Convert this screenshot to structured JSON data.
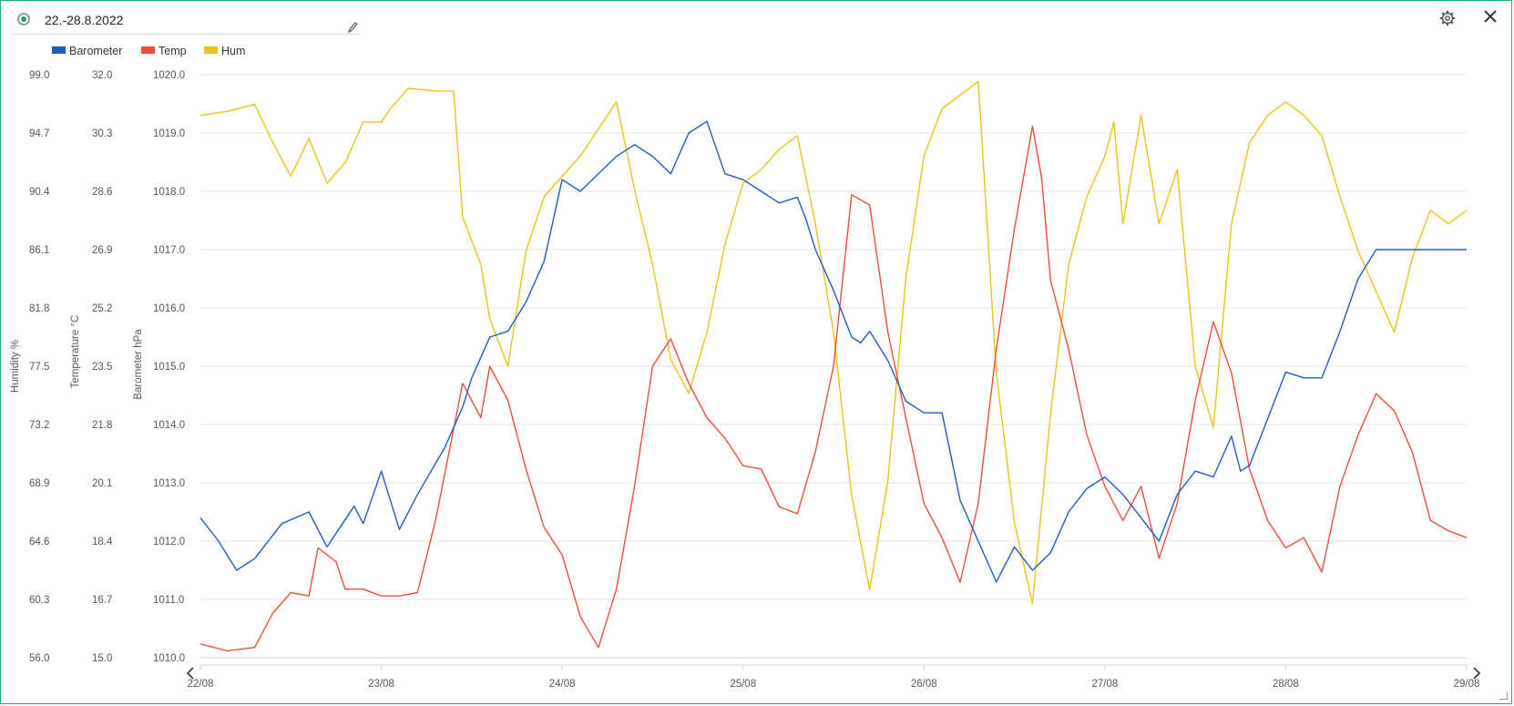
{
  "header": {
    "date_range": "22.-28.8.2022",
    "radio_icon": "radio-selected-icon",
    "edit_icon": "pencil-icon",
    "settings_icon": "gear-icon",
    "close_icon": "close-icon"
  },
  "legend": [
    {
      "label": "Barometer",
      "color": "#1f5cbf"
    },
    {
      "label": "Temp",
      "color": "#e8503a"
    },
    {
      "label": "Hum",
      "color": "#ecc319"
    }
  ],
  "navigation": {
    "prev_icon": "chevron-left-icon",
    "next_icon": "chevron-right-icon"
  },
  "chart_data": {
    "type": "line",
    "x_tick_labels": [
      "22/08",
      "23/08",
      "24/08",
      "25/08",
      "26/08",
      "27/08",
      "28/08",
      "29/08"
    ],
    "xlim": [
      0,
      7
    ],
    "x_unit": "days since 22/08",
    "grid": true,
    "legend_position": "top-left",
    "axes": [
      {
        "id": "hum",
        "label": "Humidity %",
        "ylim": [
          56.0,
          99.0
        ],
        "ticks": [
          "56.0",
          "60.3",
          "64.6",
          "68.9",
          "73.2",
          "77.5",
          "81.8",
          "86.1",
          "90.4",
          "94.7",
          "99.0"
        ]
      },
      {
        "id": "temp",
        "label": "Temperature °C",
        "ylim": [
          15.0,
          32.0
        ],
        "ticks": [
          "15.0",
          "16.7",
          "18.4",
          "20.1",
          "21.8",
          "23.5",
          "25.2",
          "26.9",
          "28.6",
          "30.3",
          "32.0"
        ]
      },
      {
        "id": "baro",
        "label": "Barometer hPa",
        "ylim": [
          1010.0,
          1020.0
        ],
        "ticks": [
          "1010.0",
          "1011.0",
          "1012.0",
          "1013.0",
          "1014.0",
          "1015.0",
          "1016.0",
          "1017.0",
          "1018.0",
          "1019.0",
          "1020.0"
        ]
      }
    ],
    "series": [
      {
        "name": "Barometer",
        "axis": "baro",
        "color": "#1f5cbf",
        "x": [
          0,
          0.1,
          0.2,
          0.3,
          0.45,
          0.6,
          0.7,
          0.85,
          0.9,
          1.0,
          1.1,
          1.2,
          1.35,
          1.45,
          1.5,
          1.6,
          1.7,
          1.8,
          1.9,
          2.0,
          2.1,
          2.2,
          2.3,
          2.4,
          2.5,
          2.6,
          2.7,
          2.8,
          2.9,
          3.0,
          3.1,
          3.2,
          3.3,
          3.35,
          3.4,
          3.5,
          3.6,
          3.65,
          3.7,
          3.8,
          3.9,
          4.0,
          4.1,
          4.2,
          4.3,
          4.4,
          4.5,
          4.6,
          4.7,
          4.8,
          4.9,
          5.0,
          5.1,
          5.2,
          5.3,
          5.4,
          5.5,
          5.6,
          5.7,
          5.75,
          5.8,
          5.9,
          6.0,
          6.1,
          6.2,
          6.3,
          6.4,
          6.5,
          6.6,
          6.7,
          6.8,
          6.9,
          7.0
        ],
        "y": [
          1012.4,
          1012.0,
          1011.5,
          1011.7,
          1012.3,
          1012.5,
          1011.9,
          1012.6,
          1012.3,
          1013.2,
          1012.2,
          1012.8,
          1013.6,
          1014.3,
          1014.8,
          1015.5,
          1015.6,
          1016.1,
          1016.8,
          1018.2,
          1018.0,
          1018.3,
          1018.6,
          1018.8,
          1018.6,
          1018.3,
          1019.0,
          1019.2,
          1018.3,
          1018.2,
          1018.0,
          1017.8,
          1017.9,
          1017.5,
          1017.0,
          1016.3,
          1015.5,
          1015.4,
          1015.6,
          1015.1,
          1014.4,
          1014.2,
          1014.2,
          1012.7,
          1012.0,
          1011.3,
          1011.9,
          1011.5,
          1011.8,
          1012.5,
          1012.9,
          1013.1,
          1012.8,
          1012.4,
          1012.0,
          1012.8,
          1013.2,
          1013.1,
          1013.8,
          1013.2,
          1013.3,
          1014.1,
          1014.9,
          1014.8,
          1014.8,
          1015.6,
          1016.5,
          1017.0,
          1017.0,
          1017.0,
          1017.0,
          1017.0,
          1017.0
        ]
      },
      {
        "name": "Temp",
        "axis": "temp",
        "color": "#e8503a",
        "x": [
          0,
          0.15,
          0.3,
          0.4,
          0.5,
          0.6,
          0.65,
          0.75,
          0.8,
          0.9,
          1.0,
          1.1,
          1.2,
          1.3,
          1.45,
          1.55,
          1.6,
          1.7,
          1.8,
          1.9,
          2.0,
          2.1,
          2.2,
          2.3,
          2.4,
          2.5,
          2.6,
          2.7,
          2.8,
          2.9,
          3.0,
          3.1,
          3.2,
          3.3,
          3.4,
          3.5,
          3.6,
          3.7,
          3.8,
          3.9,
          4.0,
          4.1,
          4.2,
          4.3,
          4.4,
          4.5,
          4.6,
          4.65,
          4.7,
          4.8,
          4.9,
          5.0,
          5.1,
          5.2,
          5.3,
          5.4,
          5.5,
          5.6,
          5.7,
          5.8,
          5.9,
          6.0,
          6.1,
          6.2,
          6.3,
          6.4,
          6.5,
          6.6,
          6.7,
          6.8,
          6.9,
          7.0
        ],
        "y": [
          15.4,
          15.2,
          15.3,
          16.3,
          16.9,
          16.8,
          18.2,
          17.8,
          17.0,
          17.0,
          16.8,
          16.8,
          16.9,
          19.0,
          23.0,
          22.0,
          23.5,
          22.5,
          20.5,
          18.8,
          18.0,
          16.2,
          15.3,
          17.0,
          20.0,
          23.5,
          24.3,
          23.0,
          22.0,
          21.4,
          20.6,
          20.5,
          19.4,
          19.2,
          21.0,
          23.5,
          28.5,
          28.2,
          24.5,
          22.0,
          19.5,
          18.5,
          17.2,
          19.5,
          24.0,
          27.5,
          30.5,
          29.0,
          26.0,
          24.0,
          21.5,
          20.0,
          19.0,
          20.0,
          17.9,
          19.5,
          22.5,
          24.8,
          23.3,
          20.5,
          19.0,
          18.2,
          18.5,
          17.5,
          20.0,
          21.5,
          22.7,
          22.2,
          21.0,
          19.0,
          18.7,
          18.5
        ]
      },
      {
        "name": "Hum",
        "axis": "hum",
        "color": "#ecc319",
        "x": [
          0,
          0.15,
          0.3,
          0.4,
          0.5,
          0.6,
          0.7,
          0.8,
          0.9,
          1.0,
          1.05,
          1.15,
          1.3,
          1.4,
          1.45,
          1.55,
          1.6,
          1.7,
          1.8,
          1.9,
          2.0,
          2.1,
          2.2,
          2.3,
          2.4,
          2.5,
          2.6,
          2.7,
          2.8,
          2.9,
          3.0,
          3.1,
          3.2,
          3.3,
          3.4,
          3.5,
          3.6,
          3.7,
          3.8,
          3.9,
          4.0,
          4.1,
          4.2,
          4.3,
          4.4,
          4.5,
          4.6,
          4.7,
          4.8,
          4.9,
          5.0,
          5.05,
          5.1,
          5.2,
          5.3,
          5.4,
          5.5,
          5.6,
          5.7,
          5.8,
          5.9,
          6.0,
          6.1,
          6.2,
          6.3,
          6.4,
          6.5,
          6.6,
          6.7,
          6.8,
          6.9,
          7.0
        ],
        "y": [
          96.0,
          96.3,
          96.8,
          94.0,
          91.5,
          94.3,
          91.0,
          92.5,
          95.5,
          95.5,
          96.5,
          98.0,
          97.8,
          97.8,
          88.5,
          85.0,
          81.0,
          77.5,
          86.0,
          90.0,
          91.5,
          93.0,
          95.0,
          97.0,
          90.5,
          85.0,
          78.0,
          75.5,
          80.0,
          86.5,
          91.0,
          92.0,
          93.5,
          94.5,
          88.0,
          80.0,
          68.0,
          61.0,
          69.0,
          84.0,
          93.0,
          96.5,
          97.5,
          98.5,
          77.0,
          66.0,
          60.0,
          74.0,
          85.0,
          90.0,
          93.0,
          95.5,
          88.0,
          96.0,
          88.0,
          92.0,
          77.5,
          73.0,
          88.0,
          94.0,
          96.0,
          97.0,
          96.0,
          94.5,
          90.0,
          86.0,
          83.0,
          80.0,
          85.5,
          89.0,
          88.0,
          89.0
        ]
      }
    ]
  }
}
